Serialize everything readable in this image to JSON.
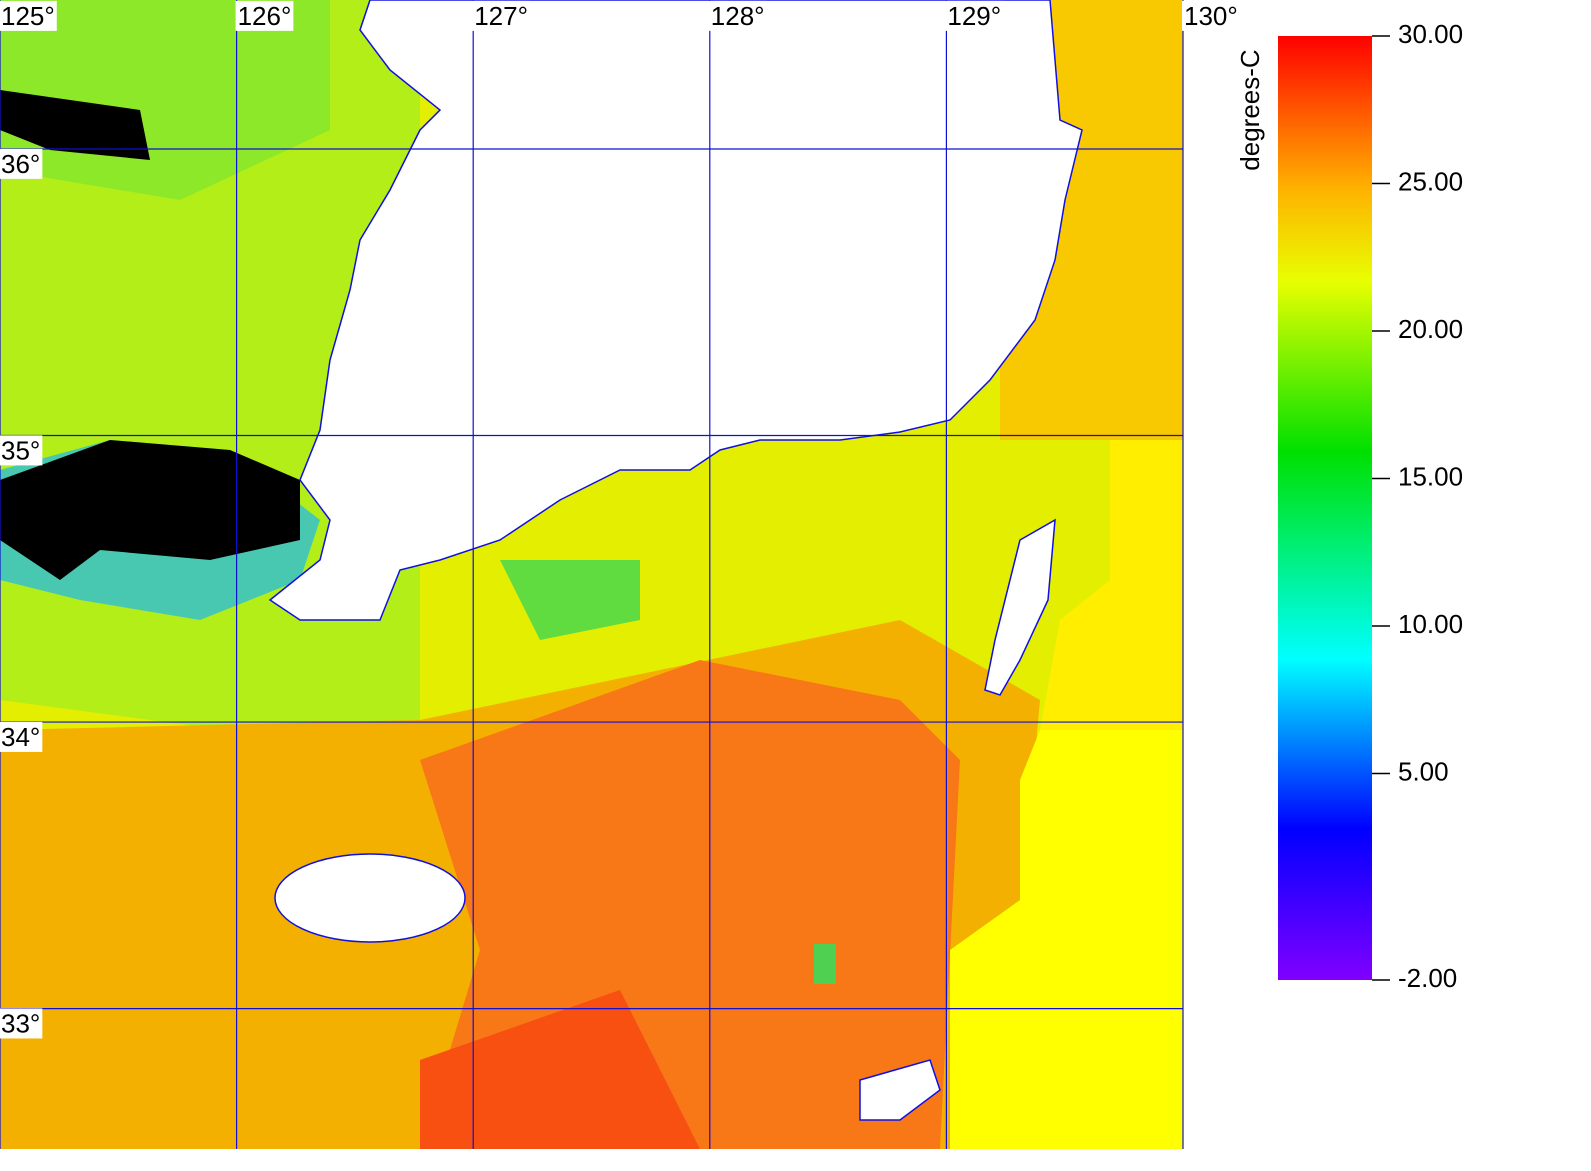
{
  "map": {
    "lonlim": [
      125,
      130
    ],
    "latlim": [
      32.51,
      36.52
    ],
    "lon_ticks": [
      {
        "value": 125,
        "label": "125°"
      },
      {
        "value": 126,
        "label": "126°"
      },
      {
        "value": 127,
        "label": "127°"
      },
      {
        "value": 128,
        "label": "128°"
      },
      {
        "value": 129,
        "label": "129°"
      },
      {
        "value": 130,
        "label": "130°"
      }
    ],
    "lat_ticks": [
      {
        "value": 36,
        "label": "36°"
      },
      {
        "value": 35,
        "label": "35°"
      },
      {
        "value": 34,
        "label": "34°"
      },
      {
        "value": 33,
        "label": "33°"
      }
    ]
  },
  "colorbar": {
    "title": "degrees-C",
    "range": [
      -2,
      30
    ],
    "ticks": [
      {
        "value": 30,
        "label": "30.00"
      },
      {
        "value": 25,
        "label": "25.00"
      },
      {
        "value": 20,
        "label": "20.00"
      },
      {
        "value": 15,
        "label": "15.00"
      },
      {
        "value": 10,
        "label": "10.00"
      },
      {
        "value": 5,
        "label": "5.00"
      },
      {
        "value": -2,
        "label": "-2.00"
      }
    ]
  }
}
